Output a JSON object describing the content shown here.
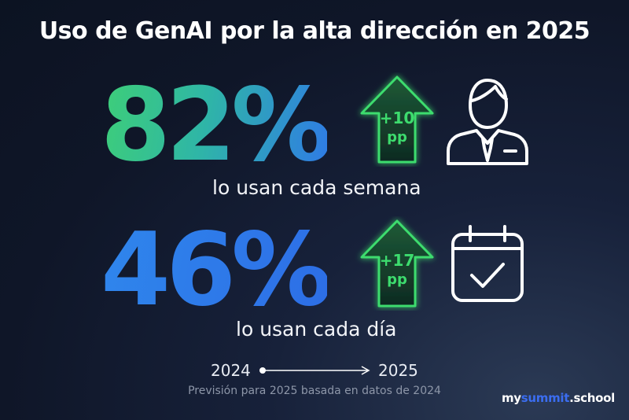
{
  "title": "Uso de GenAI por la alta dirección en 2025",
  "stats": [
    {
      "value": "82%",
      "caption": "lo usan cada semana",
      "change_top": "+10",
      "change_bottom": "pp",
      "icon": "person-icon"
    },
    {
      "value": "46%",
      "caption": "lo usan cada día",
      "change_top": "+17",
      "change_bottom": "pp",
      "icon": "calendar-check-icon"
    }
  ],
  "timeline": {
    "from": "2024",
    "to": "2025"
  },
  "footnote": "Previsión para 2025 basada en datos de 2024",
  "brand": {
    "part1": "my",
    "part2": "summit",
    "part3": ".school"
  },
  "colors": {
    "green": "#3ddc6e",
    "blue": "#2f7be6",
    "background": "#0f1628",
    "brand_blue": "#3b6df0"
  }
}
